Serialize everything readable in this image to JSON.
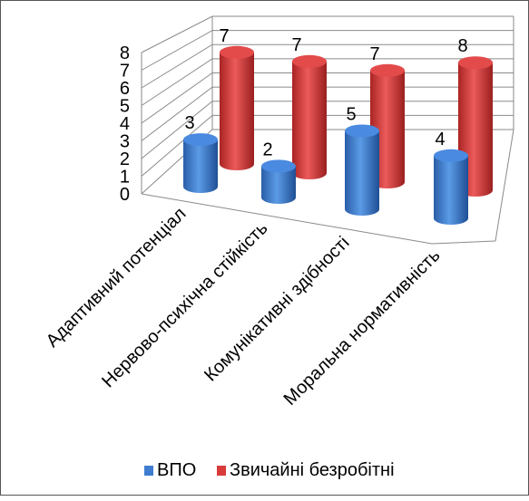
{
  "chart_data": {
    "type": "bar",
    "bar_shape": "3d-cylinder",
    "categories": [
      "Адаптивний потенціал",
      "Нервово-психічна стійкість",
      "Комунікативні здібності",
      "Моральна нормативність"
    ],
    "series": [
      {
        "name": "ВПО",
        "values": [
          3,
          2,
          5,
          4
        ],
        "color": "#3F7DD0"
      },
      {
        "name": "Звичайні безробітні",
        "values": [
          7,
          7,
          7,
          8
        ],
        "color": "#D93B3B"
      }
    ],
    "title": "",
    "xlabel": "",
    "ylabel": "",
    "ylim": [
      0,
      8
    ],
    "y_ticks": [
      "0",
      "1",
      "2",
      "3",
      "4",
      "5",
      "6",
      "7",
      "8"
    ],
    "grid": true,
    "data_labels": true,
    "legend_position": "bottom"
  }
}
